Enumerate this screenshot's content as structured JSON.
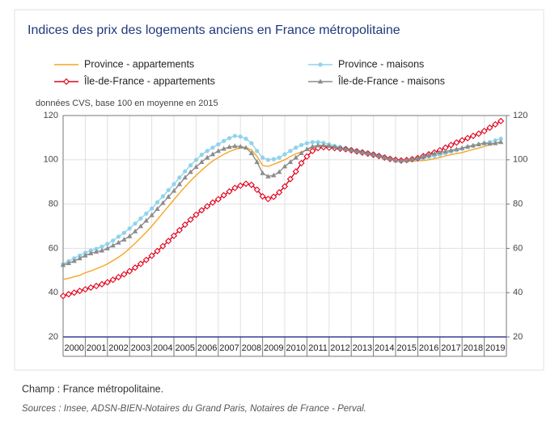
{
  "chart_data": {
    "type": "line",
    "title": "Indices des prix des logements anciens en France métropolitaine",
    "subtitle": "données CVS, base 100 en moyenne en 2015",
    "caption": "Champ : France métropolitaine.",
    "source": "Sources : Insee, ADSN-BIEN-Notaires du Grand Paris, Notaires de France - Perval.",
    "x": [
      2000,
      2000.25,
      2000.5,
      2000.75,
      2001,
      2001.25,
      2001.5,
      2001.75,
      2002,
      2002.25,
      2002.5,
      2002.75,
      2003,
      2003.25,
      2003.5,
      2003.75,
      2004,
      2004.25,
      2004.5,
      2004.75,
      2005,
      2005.25,
      2005.5,
      2005.75,
      2006,
      2006.25,
      2006.5,
      2006.75,
      2007,
      2007.25,
      2007.5,
      2007.75,
      2008,
      2008.25,
      2008.5,
      2008.75,
      2009,
      2009.25,
      2009.5,
      2009.75,
      2010,
      2010.25,
      2010.5,
      2010.75,
      2011,
      2011.25,
      2011.5,
      2011.75,
      2012,
      2012.25,
      2012.5,
      2012.75,
      2013,
      2013.25,
      2013.5,
      2013.75,
      2014,
      2014.25,
      2014.5,
      2014.75,
      2015,
      2015.25,
      2015.5,
      2015.75,
      2016,
      2016.25,
      2016.5,
      2016.75,
      2017,
      2017.25,
      2017.5,
      2017.75,
      2018,
      2018.25,
      2018.5,
      2018.75,
      2019,
      2019.25,
      2019.5,
      2019.75
    ],
    "xlim": [
      2000,
      2020
    ],
    "xticks": [
      2000,
      2001,
      2002,
      2003,
      2004,
      2005,
      2006,
      2007,
      2008,
      2009,
      2010,
      2011,
      2012,
      2013,
      2014,
      2015,
      2016,
      2017,
      2018,
      2019
    ],
    "ylim": [
      20,
      120
    ],
    "yticks": [
      20,
      40,
      60,
      80,
      100,
      120
    ],
    "y2lim": [
      20,
      120
    ],
    "y2ticks": [
      20,
      40,
      60,
      80,
      100,
      120
    ],
    "grid": true,
    "series": [
      {
        "name": "Province - appartements",
        "color": "#f5a623",
        "marker": "none",
        "values": [
          46,
          46.5,
          47.2,
          47.8,
          49,
          49.8,
          50.8,
          51.8,
          53,
          54.5,
          56,
          57.8,
          60,
          62.3,
          64.8,
          67.3,
          70,
          73,
          76,
          79,
          82,
          85,
          87.8,
          90.5,
          93,
          95.3,
          97.5,
          99.5,
          101,
          102.5,
          103.7,
          104.7,
          105.3,
          105.5,
          104.5,
          101.5,
          97.5,
          97,
          98,
          99,
          100,
          101.5,
          102.7,
          103.5,
          104.5,
          105.5,
          106,
          106.3,
          106,
          105.5,
          105,
          104.8,
          104.3,
          104,
          103.5,
          103,
          102.5,
          102,
          101.5,
          100.8,
          100.2,
          99.8,
          99.5,
          99.4,
          99.5,
          99.7,
          100,
          100.5,
          101,
          101.8,
          102.3,
          102.8,
          103.3,
          104,
          104.7,
          105.3,
          106,
          106.8,
          107.5,
          108.2
        ]
      },
      {
        "name": "Province - maisons",
        "color": "#8fd3ec",
        "marker": "circle",
        "values": [
          53,
          54.2,
          55.5,
          56.8,
          58,
          59,
          59.8,
          60.8,
          62,
          63.5,
          65.3,
          67,
          69,
          71.2,
          73.5,
          75.7,
          78,
          80.8,
          83.5,
          86.3,
          89,
          92,
          94.8,
          97.5,
          100,
          102.3,
          104,
          105.5,
          107,
          108.5,
          109.8,
          110.8,
          110.5,
          109.5,
          107.5,
          104,
          101,
          100,
          100.3,
          101,
          102.5,
          104,
          105.5,
          106.7,
          107.5,
          108,
          108,
          107.7,
          107,
          106.3,
          105.8,
          105.3,
          104.8,
          104.3,
          103.8,
          103.3,
          102.8,
          102.2,
          101.5,
          100.8,
          100.2,
          99.9,
          99.8,
          99.9,
          100.2,
          100.7,
          101.3,
          101.8,
          102.3,
          103,
          103.7,
          104.3,
          105,
          105.7,
          106.3,
          107,
          107.5,
          108,
          108.8,
          109.5
        ]
      },
      {
        "name": "Île-de-France - appartements",
        "color": "#e3001b",
        "marker": "diamond",
        "values": [
          38.5,
          39.3,
          40,
          40.8,
          41.5,
          42.3,
          43,
          43.8,
          44.7,
          45.8,
          47,
          48.3,
          49.7,
          51.3,
          53,
          54.8,
          56.7,
          58.8,
          61,
          63.3,
          65.7,
          68.2,
          70.7,
          73,
          75.2,
          77.2,
          79,
          80.7,
          82.2,
          84,
          85.7,
          87.3,
          88.3,
          89.2,
          88.7,
          86.5,
          83.5,
          82.3,
          83.3,
          85.3,
          88,
          91.3,
          94.7,
          98.5,
          101.5,
          104,
          105.3,
          105.7,
          105.5,
          105.3,
          105,
          104.8,
          104.3,
          103.8,
          103.3,
          102.8,
          102.3,
          101.7,
          101,
          100.4,
          100,
          99.7,
          99.9,
          100.3,
          100.8,
          101.7,
          102.5,
          103.3,
          104.3,
          105.5,
          106.7,
          107.8,
          108.8,
          109.8,
          110.8,
          111.8,
          113,
          114.5,
          116,
          117.5
        ]
      },
      {
        "name": "Île-de-France - maisons",
        "color": "#8c8c8c",
        "marker": "triangle",
        "values": [
          52.5,
          53.3,
          54.3,
          55.5,
          56.8,
          57.8,
          58.5,
          59,
          60,
          61.3,
          62.6,
          64,
          65.5,
          67.7,
          70,
          72.5,
          75,
          77.8,
          80.5,
          83.3,
          86,
          89,
          92,
          94.5,
          96.8,
          99,
          101,
          102.5,
          104,
          105,
          105.8,
          106.2,
          106,
          105.5,
          103,
          99,
          94,
          92.5,
          93,
          94.5,
          97,
          99,
          101,
          103,
          104.8,
          106,
          106.5,
          106.5,
          106.3,
          105.8,
          105.3,
          104.8,
          104.3,
          103.8,
          103.3,
          102.8,
          102.3,
          101.7,
          101,
          100.4,
          99.8,
          99.6,
          99.8,
          100.3,
          100.8,
          101.5,
          102.2,
          102.8,
          103.3,
          103.8,
          104.3,
          104.8,
          105.3,
          106,
          106.5,
          107,
          107.5,
          107.3,
          107.5,
          108
        ]
      }
    ]
  }
}
